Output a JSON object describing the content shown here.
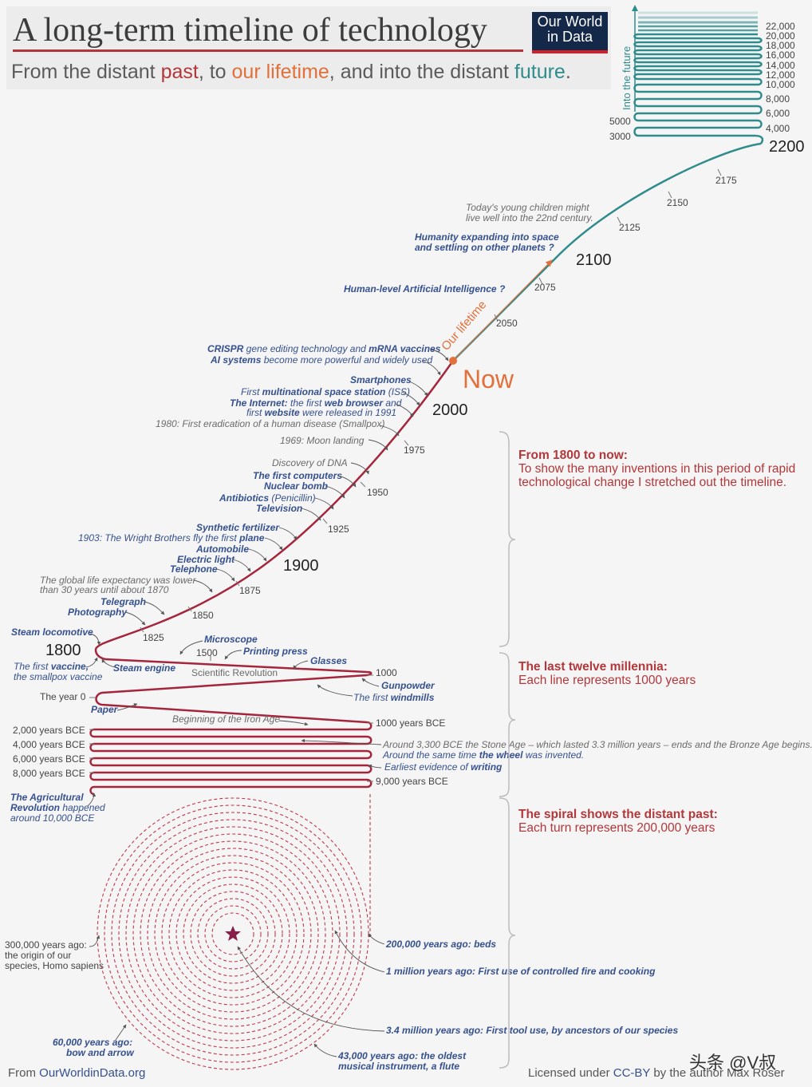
{
  "header": {
    "title": "A long-term timeline of technology",
    "subtitle_parts": [
      "From the distant ",
      "past",
      ", to ",
      "our lifetime",
      ", and into the distant ",
      "future",
      "."
    ],
    "logo_line1": "Our World",
    "logo_line2": "in Data"
  },
  "colors": {
    "past": "#b3373a",
    "lifetime": "#e2703a",
    "future": "#2f8b8c",
    "event": "#35508e"
  },
  "future": {
    "axis_label": "Into the future",
    "right_labels": [
      "22,000",
      "20,000",
      "18,000",
      "16,000",
      "14,000",
      "12,000",
      "10,000",
      "8,000",
      "6,000",
      "4,000"
    ],
    "left_labels": [
      "5000",
      "3000"
    ],
    "y2200": "2200"
  },
  "years": {
    "y2175": "2175",
    "y2150": "2150",
    "y2125": "2125",
    "y2100": "2100",
    "y2075": "2075",
    "y2050": "2050",
    "now": "Now",
    "y2000": "2000",
    "y1975": "1975",
    "y1950": "1950",
    "y1925": "1925",
    "y1900": "1900",
    "y1875": "1875",
    "y1850": "1850",
    "y1825": "1825",
    "y1800": "1800",
    "y1500": "1500",
    "y1000": "1000",
    "year0": "The year 0",
    "bce1000": "1000 years BCE",
    "bce2000": "2,000 years BCE",
    "bce4000": "4,000 years BCE",
    "bce6000": "6,000 years BCE",
    "bce8000": "8,000 years BCE",
    "bce9000": "9,000 years BCE"
  },
  "lifetime_label": "Our lifetime",
  "events": {
    "children": [
      "Today's young children might",
      "live well into the 22nd century."
    ],
    "space": [
      "Humanity expanding into space",
      "and settling on other planets ?"
    ],
    "agi": "Human-level Artificial Intelligence ?",
    "crispr_b1": "CRISPR",
    "crispr_t1": " gene editing technology and ",
    "crispr_b2": "mRNA vaccines",
    "ai_b": "AI systems",
    "ai_t": " become more powerful and widely used",
    "smartphones": "Smartphones",
    "iss_t": "First ",
    "iss_b": "multinational space station",
    "iss_t2": " (ISS)",
    "internet_b": "The Internet:",
    "internet_t": " the first ",
    "internet_b2": "web browser",
    "internet_t2": " and",
    "website_t": "first ",
    "website_b": "website",
    "website_t2": " were released in 1991",
    "smallpox": "1980: First eradication of a human disease (Smallpox)",
    "moon": "1969: Moon landing",
    "dna": "Discovery of DNA",
    "computers": "The first computers",
    "nuclear": "Nuclear bomb",
    "antibiotics_b": "Antibiotics",
    "antibiotics_t": " (Penicillin)",
    "television": "Television",
    "fertilizer": "Synthetic fertilizer",
    "wright_t": "1903: The Wright Brothers fly the first ",
    "wright_b": "plane",
    "automobile": "Automobile",
    "electric": "Electric light",
    "telephone": "Telephone",
    "lifeexp": [
      "The global life expectancy was lower",
      "than 30 years until about 1870"
    ],
    "telegraph": "Telegraph",
    "photography": "Photography",
    "steam_loco": "Steam locomotive",
    "microscope": "Microscope",
    "printing": "Printing press",
    "glasses": "Glasses",
    "vaccine_t": "The first ",
    "vaccine_b": "vaccine,",
    "vaccine_2": "the smallpox vaccine",
    "steam_engine": "Steam engine",
    "sci_rev": "Scientific Revolution",
    "gunpowder": "Gunpowder",
    "windmills_t": "The first ",
    "windmills_b": "windmills",
    "paper": "Paper",
    "iron_age": "Beginning of the Iron Age",
    "stone_age": "Around 3,300 BCE the Stone Age – which lasted 3.3 million years – ends and the Bronze Age begins.",
    "wheel_t": "Around the same time ",
    "wheel_b": "the wheel",
    "wheel_t2": " was invented.",
    "writing_t": "Earliest evidence of ",
    "writing_b": "writing",
    "agri_b": "The Agricultural",
    "agri_b2": "Revolution",
    "agri_t": " happened",
    "agri_3": "around 10,000 BCE",
    "sapiens": [
      "300,000 years ago:",
      "the origin of our",
      "species, Homo sapiens"
    ],
    "beds": "200,000 years ago: beds",
    "fire": "1 million years ago: First use of controlled fire and cooking",
    "tools": "3.4 million years ago: First tool use, by ancestors of our species",
    "bow": [
      "60,000 years ago:",
      "bow and arrow"
    ],
    "flute": [
      "43,000 years ago: the oldest",
      "musical instrument, a flute"
    ]
  },
  "sections": [
    {
      "title": "From 1800 to now:",
      "body": "To show the many inventions in this period of rapid technological change I stretched out the timeline."
    },
    {
      "title": "The last twelve millennia:",
      "body": "Each line represents 1000 years"
    },
    {
      "title": "The spiral shows the distant past:",
      "body": "Each turn represents 200,000 years"
    }
  ],
  "footer": {
    "left_prefix": "From ",
    "left_link": "OurWorldinData.org",
    "right_prefix": "Licensed under ",
    "right_link": "CC-BY",
    "right_suffix": " by the author Max Roser",
    "watermark": "头条 @V叔"
  }
}
